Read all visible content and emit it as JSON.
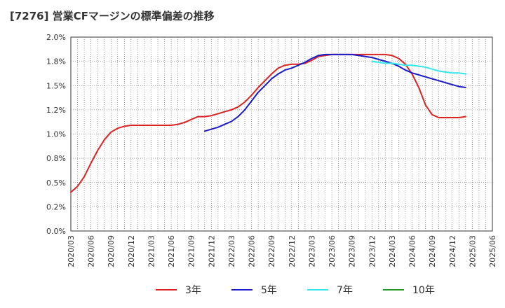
{
  "chart_data": {
    "type": "line",
    "title": "[7276]  営業CFマージンの標準偏差の推移",
    "xlabel": "",
    "ylabel": "",
    "ylim": [
      0,
      2.0
    ],
    "y_ticks": [
      "0.0%",
      "0.2%",
      "0.5%",
      "0.8%",
      "1.0%",
      "1.2%",
      "1.5%",
      "1.8%",
      "2.0%"
    ],
    "y_tick_values": [
      0,
      0.25,
      0.5,
      0.75,
      1.0,
      1.25,
      1.5,
      1.75,
      2.0
    ],
    "x_ticks": [
      "2020/03",
      "2020/06",
      "2020/09",
      "2020/12",
      "2021/03",
      "2021/06",
      "2021/09",
      "2021/12",
      "2022/03",
      "2022/06",
      "2022/09",
      "2022/12",
      "2023/03",
      "2023/06",
      "2023/09",
      "2023/12",
      "2024/03",
      "2024/06",
      "2024/09",
      "2024/12",
      "2025/03",
      "2025/06"
    ],
    "x_start": "2020/03",
    "grid": true,
    "legend_position": "bottom",
    "series": [
      {
        "name": "3年",
        "color": "#dd2222",
        "values": [
          0.4,
          0.46,
          0.56,
          0.7,
          0.83,
          0.94,
          1.02,
          1.06,
          1.08,
          1.09,
          1.09,
          1.09,
          1.09,
          1.09,
          1.09,
          1.09,
          1.1,
          1.12,
          1.15,
          1.18,
          1.18,
          1.19,
          1.21,
          1.23,
          1.25,
          1.28,
          1.33,
          1.4,
          1.48,
          1.55,
          1.62,
          1.68,
          1.71,
          1.72,
          1.72,
          1.73,
          1.76,
          1.8,
          1.81,
          1.82,
          1.82,
          1.82,
          1.82,
          1.82,
          1.82,
          1.82,
          1.82,
          1.82,
          1.81,
          1.78,
          1.72,
          1.62,
          1.48,
          1.3,
          1.2,
          1.17,
          1.17,
          1.17,
          1.17,
          1.18
        ]
      },
      {
        "name": "5年",
        "color": "#1a1acc",
        "values": [
          null,
          null,
          null,
          null,
          null,
          null,
          null,
          null,
          null,
          null,
          null,
          null,
          null,
          null,
          null,
          null,
          null,
          null,
          null,
          null,
          1.03,
          1.05,
          1.07,
          1.1,
          1.13,
          1.18,
          1.25,
          1.34,
          1.43,
          1.5,
          1.57,
          1.62,
          1.66,
          1.68,
          1.71,
          1.74,
          1.78,
          1.81,
          1.82,
          1.82,
          1.82,
          1.82,
          1.82,
          1.81,
          1.8,
          1.79,
          1.77,
          1.75,
          1.73,
          1.7,
          1.66,
          1.63,
          1.61,
          1.59,
          1.57,
          1.55,
          1.53,
          1.51,
          1.49,
          1.48
        ]
      },
      {
        "name": "7年",
        "color": "#33e5ee",
        "values": [
          null,
          null,
          null,
          null,
          null,
          null,
          null,
          null,
          null,
          null,
          null,
          null,
          null,
          null,
          null,
          null,
          null,
          null,
          null,
          null,
          null,
          null,
          null,
          null,
          null,
          null,
          null,
          null,
          null,
          null,
          null,
          null,
          null,
          null,
          null,
          null,
          null,
          null,
          null,
          null,
          null,
          null,
          null,
          null,
          null,
          1.75,
          1.74,
          1.73,
          1.73,
          1.72,
          1.71,
          1.71,
          1.7,
          1.69,
          1.67,
          1.65,
          1.64,
          1.63,
          1.63,
          1.62
        ]
      },
      {
        "name": "10年",
        "color": "#229922",
        "values": []
      }
    ]
  }
}
